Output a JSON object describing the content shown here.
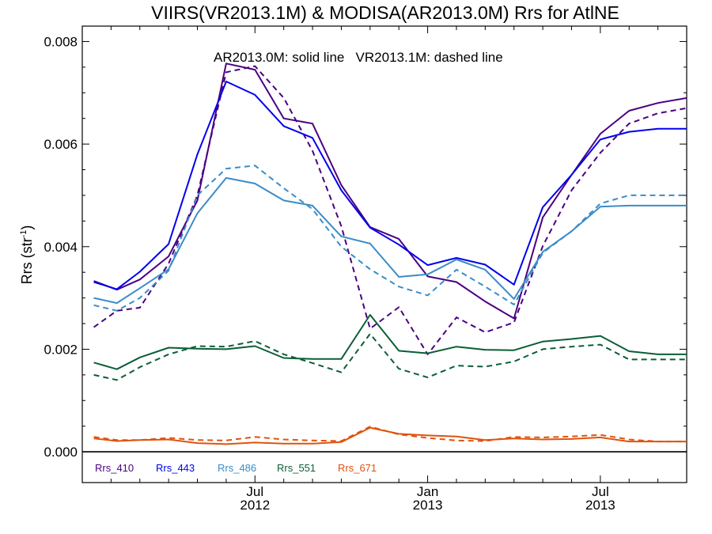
{
  "chart_data": {
    "type": "line",
    "title": "VIIRS(VR2013.1M) & MODISA(AR2013.0M)  Rrs for AtlNE",
    "ylabel_main": "Rrs (str",
    "ylabel_sup": "-1",
    "ylabel_close": ")",
    "annotation": "AR2013.0M: solid line   VR2013.1M: dashed line",
    "ylim": [
      -0.0006,
      0.0083
    ],
    "yticks": [
      "0.000",
      "0.002",
      "0.004",
      "0.006",
      "0.008"
    ],
    "ytick_values": [
      0.0,
      0.002,
      0.004,
      0.006,
      0.008
    ],
    "xlim": [
      0,
      21
    ],
    "x_months": [
      "2012-02",
      "2012-03",
      "2012-04",
      "2012-05",
      "2012-06",
      "2012-07",
      "2012-08",
      "2012-09",
      "2012-10",
      "2012-11",
      "2012-12",
      "2013-01",
      "2013-02",
      "2013-03",
      "2013-04",
      "2013-05",
      "2013-06",
      "2013-07",
      "2013-08",
      "2013-09"
    ],
    "xtick_labels": [
      {
        "month": "Jul",
        "year": "2012",
        "x": 6
      },
      {
        "month": "Jan",
        "year": "2013",
        "x": 12
      },
      {
        "month": "Jul",
        "year": "2013",
        "x": 18
      }
    ],
    "x_values": [
      0.4,
      1.2,
      2.0,
      3.0,
      4.0,
      5.0,
      6.0,
      7.0,
      8.0,
      9.0,
      10.0,
      11.0,
      12.0,
      13.0,
      14.0,
      15.0,
      16.0,
      17.0,
      18.0,
      19.0,
      20.0,
      21.0
    ],
    "series": [
      {
        "name": "Rrs_410",
        "color": "#4b0082",
        "solid": [
          0.00333,
          0.00316,
          0.00336,
          0.00381,
          0.0049,
          0.00757,
          0.00745,
          0.0065,
          0.0064,
          0.0052,
          0.00438,
          0.00415,
          0.00342,
          0.00331,
          0.00293,
          0.0026,
          0.00457,
          0.0054,
          0.0062,
          0.00665,
          0.0068,
          0.0069
        ],
        "dashed": [
          0.00243,
          0.00275,
          0.00281,
          0.00367,
          0.005,
          0.0074,
          0.00752,
          0.0069,
          0.00587,
          0.0044,
          0.0024,
          0.00282,
          0.0019,
          0.00262,
          0.00233,
          0.00252,
          0.00401,
          0.0051,
          0.00583,
          0.0064,
          0.0066,
          0.0067
        ]
      },
      {
        "name": "Rrs_443",
        "color": "#0000ee",
        "solid": [
          0.00331,
          0.00317,
          0.00351,
          0.00405,
          0.0058,
          0.00722,
          0.00696,
          0.00635,
          0.00612,
          0.0051,
          0.00437,
          0.00404,
          0.00364,
          0.00378,
          0.00365,
          0.00326,
          0.00477,
          0.0054,
          0.00609,
          0.00624,
          0.0063,
          0.0063
        ]
      },
      {
        "name": "Rrs_486",
        "color": "#3a8cc8",
        "solid": [
          0.003,
          0.0029,
          0.00319,
          0.00356,
          0.00465,
          0.00534,
          0.00523,
          0.0049,
          0.0048,
          0.0042,
          0.00406,
          0.00341,
          0.00346,
          0.00375,
          0.00355,
          0.00298,
          0.0039,
          0.0043,
          0.00478,
          0.0048,
          0.0048,
          0.0048
        ],
        "dashed": [
          0.00286,
          0.00275,
          0.003,
          0.00353,
          0.005,
          0.00552,
          0.00558,
          0.00514,
          0.00473,
          0.004,
          0.00356,
          0.00322,
          0.00305,
          0.00355,
          0.00322,
          0.00287,
          0.00388,
          0.0043,
          0.00484,
          0.005,
          0.005,
          0.005
        ]
      },
      {
        "name": "Rrs_551",
        "color": "#0b5e36",
        "solid": [
          0.00174,
          0.00161,
          0.00184,
          0.00203,
          0.00201,
          0.002,
          0.00206,
          0.00183,
          0.00181,
          0.00181,
          0.00267,
          0.00197,
          0.00192,
          0.00205,
          0.00199,
          0.00198,
          0.00215,
          0.0022,
          0.00226,
          0.00196,
          0.0019,
          0.0019
        ],
        "dashed": [
          0.0015,
          0.0014,
          0.00165,
          0.0019,
          0.00206,
          0.00205,
          0.00216,
          0.0019,
          0.00173,
          0.00155,
          0.0023,
          0.00162,
          0.00145,
          0.00168,
          0.00166,
          0.00176,
          0.002,
          0.00205,
          0.00209,
          0.0018,
          0.0018,
          0.0018
        ]
      },
      {
        "name": "Rrs_671",
        "color": "#e0530d",
        "solid": [
          0.00026,
          0.00021,
          0.00023,
          0.00024,
          0.00017,
          0.00015,
          0.00018,
          0.00016,
          0.00016,
          0.00019,
          0.00047,
          0.00035,
          0.00032,
          0.0003,
          0.00023,
          0.00026,
          0.00024,
          0.00025,
          0.00028,
          0.0002,
          0.0002,
          0.0002
        ],
        "dashed": [
          0.00029,
          0.00023,
          0.00023,
          0.00027,
          0.00023,
          0.00022,
          0.00029,
          0.00024,
          0.00022,
          0.00021,
          0.00049,
          0.00034,
          0.00027,
          0.00022,
          0.00021,
          0.00029,
          0.00028,
          0.0003,
          0.00033,
          0.00024,
          0.0002,
          0.0002
        ]
      }
    ],
    "legend_placement": "bottom-left",
    "zero_line": true,
    "grid": false
  }
}
